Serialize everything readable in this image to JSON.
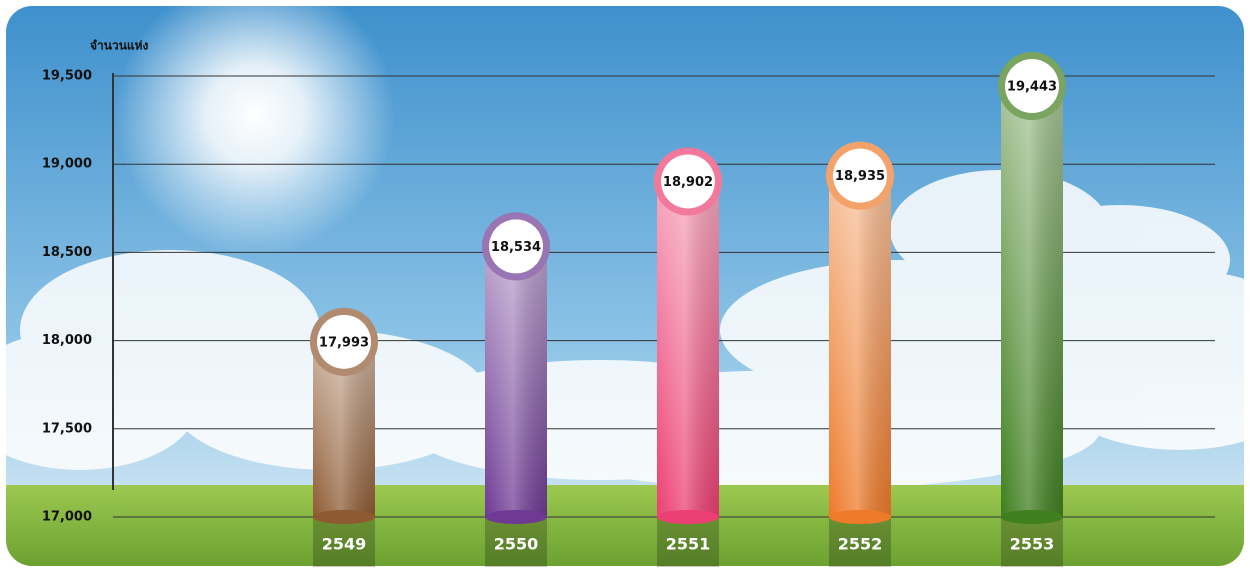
{
  "chart_data": {
    "type": "bar",
    "y_label": "จำนวนแห่ง",
    "categories": [
      "2549",
      "2550",
      "2551",
      "2552",
      "2553"
    ],
    "values": [
      17993,
      18534,
      18902,
      18935,
      19443
    ],
    "value_labels": [
      "17,993",
      "18,534",
      "18,902",
      "18,935",
      "19,443"
    ],
    "colors": [
      "#8e5a32",
      "#6e3a94",
      "#ec3f72",
      "#ee7a2a",
      "#3f7f1e"
    ],
    "ylim": [
      17000,
      19500
    ],
    "yticks": [
      {
        "value": 17000,
        "label": "17,000"
      },
      {
        "value": 17500,
        "label": "17,500"
      },
      {
        "value": 18000,
        "label": "18,000"
      },
      {
        "value": 18500,
        "label": "18,500"
      },
      {
        "value": 19000,
        "label": "19,000"
      },
      {
        "value": 19500,
        "label": "19,500"
      }
    ],
    "grid": true
  }
}
